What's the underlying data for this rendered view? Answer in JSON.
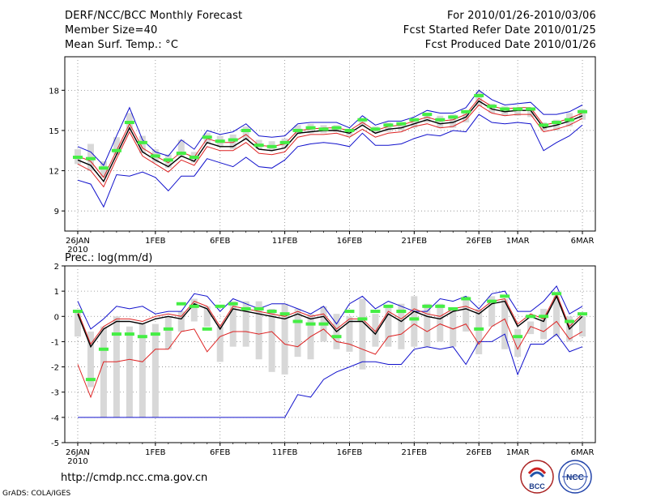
{
  "header": {
    "title": "DERF/NCC/BCC Monthly Forecast",
    "member_size": "Member Size=40",
    "variable": "Mean Surf. Temp.: °C",
    "forecast_period": "For 2010/01/26-2010/03/06",
    "refer_date": "Fcst Started Refer Date 2010/01/25",
    "produced_date": "Fcst Produced Date 2010/01/26"
  },
  "footer": {
    "url": "http://cmdp.ncc.cma.gov.cn",
    "credit": "GrADS: COLA/IGES",
    "logo1_text": "BCC",
    "logo2_text": "NCC"
  },
  "colors": {
    "max_min": "#1010cc",
    "mean": "#000000",
    "bar": "#d8d8d8",
    "obs": "#44ee44",
    "lower": "#dd2222"
  },
  "chart_data": [
    {
      "type": "line",
      "title": "Mean Surf. Temp.: °C",
      "x_tick_labels": [
        "26JAN",
        "1FEB",
        "6FEB",
        "11FEB",
        "16FEB",
        "21FEB",
        "26FEB",
        "1MAR",
        "6MAR"
      ],
      "x_tick_days": [
        0,
        6,
        11,
        16,
        21,
        26,
        31,
        34,
        39
      ],
      "x_year_label": "2010",
      "xlim": [
        -1,
        40
      ],
      "ylim": [
        7.5,
        20.5
      ],
      "y_ticks": [
        9,
        12,
        15,
        18
      ],
      "series": [
        {
          "name": "Max",
          "color_key": "max_min",
          "values": [
            13.8,
            13.4,
            12.4,
            14.6,
            16.7,
            14.3,
            13.4,
            13.1,
            14.3,
            13.6,
            15.0,
            14.7,
            14.9,
            15.5,
            14.6,
            14.5,
            14.6,
            15.5,
            15.6,
            15.6,
            15.6,
            15.2,
            16.1,
            15.4,
            15.7,
            15.7,
            16.0,
            16.5,
            16.3,
            16.3,
            16.7,
            18.0,
            17.3,
            16.9,
            17.0,
            17.1,
            16.2,
            16.2,
            16.4,
            16.9
          ]
        },
        {
          "name": "Mean",
          "color_key": "mean",
          "values": [
            12.8,
            12.4,
            11.2,
            13.2,
            15.2,
            13.4,
            12.8,
            12.3,
            13.1,
            12.7,
            14.1,
            13.8,
            13.8,
            14.4,
            13.6,
            13.5,
            13.7,
            14.8,
            14.9,
            15.0,
            15.0,
            14.8,
            15.4,
            14.8,
            15.1,
            15.2,
            15.5,
            15.8,
            15.5,
            15.6,
            16.0,
            17.2,
            16.6,
            16.4,
            16.5,
            16.5,
            15.2,
            15.4,
            15.7,
            16.1
          ]
        },
        {
          "name": "Upper",
          "color_key": "lower",
          "values": [
            13.1,
            12.7,
            11.5,
            13.5,
            15.5,
            13.7,
            13.1,
            12.6,
            13.4,
            13.0,
            14.4,
            14.1,
            14.1,
            14.7,
            13.9,
            13.8,
            14.0,
            15.0,
            15.1,
            15.2,
            15.2,
            15.0,
            15.6,
            15.0,
            15.3,
            15.4,
            15.7,
            16.0,
            15.7,
            15.8,
            16.2,
            17.4,
            16.8,
            16.6,
            16.7,
            16.7,
            15.4,
            15.6,
            15.9,
            16.3
          ]
        },
        {
          "name": "Lower",
          "color_key": "lower",
          "values": [
            12.5,
            12.0,
            10.8,
            12.9,
            14.9,
            13.1,
            12.5,
            11.9,
            12.8,
            12.4,
            13.8,
            13.5,
            13.5,
            14.1,
            13.3,
            13.2,
            13.4,
            14.5,
            14.7,
            14.7,
            14.8,
            14.5,
            15.1,
            14.5,
            14.8,
            14.9,
            15.3,
            15.5,
            15.2,
            15.3,
            15.8,
            16.9,
            16.3,
            16.1,
            16.2,
            16.2,
            14.9,
            15.1,
            15.4,
            15.9
          ]
        },
        {
          "name": "Min",
          "color_key": "max_min",
          "values": [
            11.3,
            11.0,
            9.3,
            11.7,
            11.6,
            11.9,
            11.5,
            10.5,
            11.6,
            11.6,
            12.9,
            12.6,
            12.3,
            13.0,
            12.3,
            12.2,
            12.8,
            13.8,
            14.0,
            14.1,
            14.0,
            13.8,
            14.8,
            13.9,
            13.9,
            14.0,
            14.4,
            14.7,
            14.6,
            15.0,
            14.9,
            16.2,
            15.6,
            15.5,
            15.6,
            15.5,
            13.5,
            14.1,
            14.6,
            15.4
          ]
        }
      ],
      "bars_low": [
        12.5,
        12.0,
        11.5,
        13.2,
        15.0,
        13.3,
        12.6,
        12.2,
        13.0,
        12.6,
        14.0,
        13.8,
        13.6,
        14.3,
        13.6,
        13.5,
        13.7,
        14.7,
        14.8,
        14.8,
        14.9,
        14.6,
        15.3,
        14.8,
        14.9,
        15.0,
        15.2,
        15.6,
        15.2,
        15.2,
        15.6,
        16.8,
        16.3,
        16.1,
        16.1,
        16.0,
        15.0,
        15.0,
        15.3,
        15.8
      ],
      "bars_high": [
        13.6,
        14.0,
        12.7,
        14.5,
        16.3,
        14.6,
        13.6,
        13.2,
        14.3,
        13.4,
        14.8,
        14.6,
        14.7,
        15.3,
        14.3,
        14.2,
        14.4,
        15.4,
        15.5,
        15.4,
        15.4,
        15.1,
        15.9,
        15.3,
        15.6,
        15.6,
        15.8,
        16.2,
        16.1,
        16.2,
        16.5,
        17.9,
        17.0,
        16.8,
        16.7,
        16.7,
        15.6,
        15.8,
        16.3,
        16.6
      ],
      "observed": [
        13.0,
        12.9,
        12.2,
        13.5,
        15.6,
        14.1,
        13.1,
        12.8,
        13.3,
        13.0,
        14.5,
        14.2,
        14.3,
        15.0,
        13.9,
        13.8,
        14.1,
        15.0,
        15.2,
        15.1,
        15.2,
        15.0,
        15.8,
        15.1,
        15.4,
        15.5,
        15.8,
        16.2,
        15.8,
        16.0,
        16.4,
        17.6,
        16.8,
        16.6,
        16.6,
        16.6,
        15.4,
        15.6,
        15.8,
        16.4
      ]
    },
    {
      "type": "line",
      "title": "Prec.: log(mm/d)",
      "x_tick_labels": [
        "26JAN",
        "1FEB",
        "6FEB",
        "11FEB",
        "16FEB",
        "21FEB",
        "26FEB",
        "1MAR",
        "6MAR"
      ],
      "x_tick_days": [
        0,
        6,
        11,
        16,
        21,
        26,
        31,
        34,
        39
      ],
      "x_year_label": "2010",
      "xlim": [
        -1,
        40
      ],
      "ylim": [
        -5,
        2
      ],
      "y_ticks": [
        -5,
        -4,
        -3,
        -2,
        -1,
        0,
        1,
        2
      ],
      "series": [
        {
          "name": "Max",
          "color_key": "max_min",
          "values": [
            0.6,
            -0.5,
            -0.1,
            0.4,
            0.3,
            0.4,
            0.1,
            0.2,
            0.2,
            0.9,
            0.8,
            0.2,
            0.7,
            0.5,
            0.3,
            0.5,
            0.5,
            0.3,
            0.1,
            0.4,
            -0.3,
            0.5,
            0.8,
            0.3,
            0.6,
            0.4,
            0.2,
            0.2,
            0.7,
            0.6,
            0.8,
            0.3,
            0.9,
            1.0,
            0.2,
            0.2,
            0.6,
            1.2,
            0.1,
            0.4
          ]
        },
        {
          "name": "Mean",
          "color_key": "mean",
          "values": [
            0.1,
            -1.2,
            -0.5,
            -0.2,
            -0.2,
            -0.3,
            -0.1,
            0.0,
            -0.1,
            0.5,
            0.3,
            -0.5,
            0.3,
            0.2,
            0.1,
            0.0,
            -0.1,
            0.1,
            -0.1,
            0.0,
            -0.6,
            -0.2,
            -0.2,
            -0.7,
            0.1,
            -0.2,
            0.2,
            0.0,
            -0.1,
            0.2,
            0.3,
            0.1,
            0.5,
            0.6,
            -0.4,
            0.0,
            -0.2,
            0.8,
            -0.5,
            0.0
          ]
        },
        {
          "name": "Upper",
          "color_key": "lower",
          "values": [
            0.2,
            -1.1,
            -0.4,
            -0.1,
            -0.1,
            -0.2,
            0.0,
            0.1,
            0.0,
            0.6,
            0.4,
            -0.4,
            0.4,
            0.3,
            0.2,
            0.1,
            0.0,
            0.2,
            0.0,
            0.1,
            -0.5,
            -0.1,
            -0.1,
            -0.6,
            0.2,
            -0.1,
            0.3,
            0.1,
            0.0,
            0.3,
            0.4,
            0.2,
            0.6,
            0.7,
            -0.3,
            0.1,
            -0.1,
            0.9,
            -0.4,
            0.1
          ]
        },
        {
          "name": "Lower",
          "color_key": "lower",
          "values": [
            -1.9,
            -3.2,
            -1.8,
            -1.8,
            -1.7,
            -1.8,
            -1.3,
            -1.3,
            -0.6,
            -0.5,
            -1.4,
            -0.8,
            -0.6,
            -0.6,
            -0.7,
            -0.6,
            -1.1,
            -1.2,
            -0.8,
            -0.5,
            -1.0,
            -1.1,
            -1.3,
            -1.5,
            -0.8,
            -0.7,
            -0.3,
            -0.6,
            -0.3,
            -0.5,
            -0.3,
            -1.1,
            -0.4,
            -0.1,
            -1.3,
            -0.4,
            -0.6,
            -0.2,
            -0.9,
            -0.6
          ]
        },
        {
          "name": "Min",
          "color_key": "max_min",
          "values": [
            -4.0,
            -4.0,
            -4.0,
            -4.0,
            -4.0,
            -4.0,
            -4.0,
            -4.0,
            -4.0,
            -4.0,
            -4.0,
            -4.0,
            -4.0,
            -4.0,
            -4.0,
            -4.0,
            -4.0,
            -3.1,
            -3.2,
            -2.5,
            -2.2,
            -2.0,
            -1.8,
            -1.8,
            -1.9,
            -1.9,
            -1.3,
            -1.2,
            -1.3,
            -1.2,
            -1.9,
            -1.0,
            -1.0,
            -0.7,
            -2.3,
            -1.1,
            -1.1,
            -0.7,
            -1.4,
            -1.2
          ]
        }
      ],
      "bars_low": [
        -0.8,
        -2.8,
        -4.0,
        -4.0,
        -4.0,
        -4.0,
        -4.0,
        -1.3,
        -0.6,
        -0.2,
        -0.4,
        -1.8,
        -1.2,
        -1.2,
        -1.7,
        -2.2,
        -2.3,
        -1.6,
        -1.7,
        -1.0,
        -1.3,
        -1.4,
        -2.1,
        -1.2,
        -1.2,
        -1.3,
        -1.2,
        -1.2,
        -1.0,
        -1.2,
        -0.6,
        -1.5,
        -0.4,
        -1.3,
        -1.6,
        -0.7,
        -0.9,
        -0.8,
        -1.0,
        -0.8
      ],
      "bars_high": [
        0.2,
        -0.6,
        -0.4,
        0.0,
        -0.4,
        -0.3,
        -0.3,
        0.0,
        0.2,
        0.7,
        0.4,
        -0.4,
        0.6,
        0.6,
        0.6,
        0.3,
        0.5,
        0.3,
        0.1,
        0.4,
        0.1,
        0.0,
        0.7,
        0.1,
        0.4,
        0.5,
        0.8,
        0.5,
        0.5,
        0.3,
        0.8,
        0.3,
        0.8,
        0.7,
        -0.5,
        -0.2,
        0.3,
        0.8,
        0.0,
        0.0
      ],
      "observed": [
        0.2,
        -2.5,
        -1.3,
        -0.7,
        -0.7,
        -0.8,
        -0.7,
        -0.5,
        0.5,
        0.4,
        -0.5,
        0.4,
        0.5,
        0.3,
        0.3,
        0.2,
        0.1,
        -0.2,
        -0.3,
        -0.3,
        -0.8,
        0.2,
        -0.1,
        0.2,
        0.4,
        0.2,
        -0.1,
        0.4,
        0.4,
        0.3,
        0.7,
        -0.5,
        0.6,
        0.8,
        -0.8,
        0.0,
        0.0,
        0.9,
        -0.2,
        0.1
      ]
    }
  ]
}
